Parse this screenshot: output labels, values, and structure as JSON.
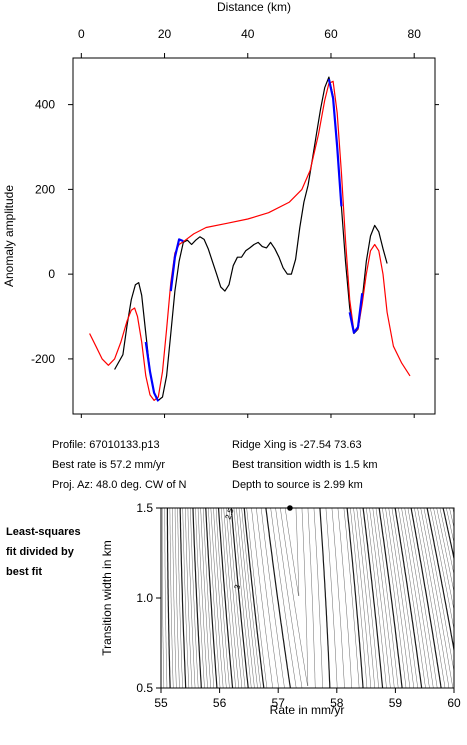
{
  "chart_data": [
    {
      "type": "line",
      "xlabel": "Distance (km)",
      "ylabel": "Anomaly amplitude",
      "xlim": [
        -2,
        85
      ],
      "ylim": [
        -330,
        510
      ],
      "x_ticks": [
        0,
        20,
        40,
        60,
        80
      ],
      "y_ticks": [
        -200,
        0,
        200,
        400
      ],
      "x_axis_position": "top",
      "grid": false,
      "series": [
        {
          "color": "#000000",
          "points": [
            [
              8,
              -225
            ],
            [
              10,
              -190
            ],
            [
              11,
              -120
            ],
            [
              12,
              -60
            ],
            [
              13,
              -25
            ],
            [
              13.8,
              -20
            ],
            [
              14.5,
              -50
            ],
            [
              15.5,
              -140
            ],
            [
              16.5,
              -230
            ],
            [
              17.5,
              -280
            ],
            [
              18.5,
              -298
            ],
            [
              19.5,
              -290
            ],
            [
              20.5,
              -240
            ],
            [
              21.5,
              -140
            ],
            [
              22.5,
              -40
            ],
            [
              23.5,
              30
            ],
            [
              24.5,
              75
            ],
            [
              25.5,
              80
            ],
            [
              26.5,
              70
            ],
            [
              27.5,
              80
            ],
            [
              28.5,
              88
            ],
            [
              29.5,
              82
            ],
            [
              30.5,
              60
            ],
            [
              31.5,
              30
            ],
            [
              32.5,
              0
            ],
            [
              33.5,
              -30
            ],
            [
              34.5,
              -40
            ],
            [
              35.5,
              -25
            ],
            [
              36.5,
              20
            ],
            [
              37.5,
              40
            ],
            [
              38.5,
              40
            ],
            [
              39.5,
              55
            ],
            [
              40.5,
              62
            ],
            [
              41.5,
              70
            ],
            [
              42.5,
              75
            ],
            [
              43.5,
              65
            ],
            [
              44.5,
              62
            ],
            [
              45.5,
              75
            ],
            [
              46.5,
              60
            ],
            [
              47.5,
              40
            ],
            [
              48.5,
              15
            ],
            [
              49.5,
              0
            ],
            [
              50.5,
              0
            ],
            [
              51.5,
              35
            ],
            [
              52.5,
              110
            ],
            [
              53.5,
              170
            ],
            [
              54.5,
              210
            ],
            [
              55.5,
              270
            ],
            [
              56.5,
              330
            ],
            [
              57.5,
              390
            ],
            [
              58.5,
              440
            ],
            [
              59.5,
              465
            ],
            [
              60.5,
              420
            ],
            [
              61.5,
              300
            ],
            [
              62.5,
              160
            ],
            [
              63.5,
              30
            ],
            [
              64.5,
              -80
            ],
            [
              65.5,
              -140
            ],
            [
              66.5,
              -130
            ],
            [
              67.5,
              -60
            ],
            [
              68.5,
              30
            ],
            [
              69.5,
              90
            ],
            [
              70.5,
              115
            ],
            [
              71.5,
              100
            ],
            [
              72.5,
              60
            ],
            [
              73.5,
              25
            ]
          ]
        },
        {
          "color": "#ff0000",
          "points": [
            [
              2,
              -140
            ],
            [
              3.5,
              -170
            ],
            [
              5,
              -200
            ],
            [
              6.5,
              -215
            ],
            [
              8,
              -200
            ],
            [
              9.5,
              -160
            ],
            [
              11,
              -110
            ],
            [
              12,
              -85
            ],
            [
              12.8,
              -80
            ],
            [
              13.5,
              -100
            ],
            [
              14.5,
              -160
            ],
            [
              15.5,
              -240
            ],
            [
              16.5,
              -285
            ],
            [
              17.5,
              -298
            ],
            [
              18.5,
              -290
            ],
            [
              19.5,
              -230
            ],
            [
              20.5,
              -130
            ],
            [
              21.5,
              -20
            ],
            [
              22.5,
              50
            ],
            [
              23.5,
              70
            ],
            [
              25,
              80
            ],
            [
              27,
              95
            ],
            [
              30,
              110
            ],
            [
              35,
              120
            ],
            [
              40,
              130
            ],
            [
              45,
              145
            ],
            [
              50,
              170
            ],
            [
              53,
              200
            ],
            [
              55,
              245
            ],
            [
              57,
              330
            ],
            [
              58.5,
              410
            ],
            [
              59.5,
              450
            ],
            [
              60.5,
              455
            ],
            [
              61.5,
              380
            ],
            [
              62.5,
              240
            ],
            [
              63.5,
              80
            ],
            [
              64.5,
              -60
            ],
            [
              65.5,
              -135
            ],
            [
              66.5,
              -130
            ],
            [
              67.5,
              -70
            ],
            [
              68.5,
              0
            ],
            [
              69.5,
              55
            ],
            [
              70.5,
              70
            ],
            [
              71.5,
              55
            ],
            [
              72.5,
              0
            ],
            [
              73.5,
              -90
            ],
            [
              75,
              -170
            ],
            [
              77,
              -210
            ],
            [
              79,
              -240
            ]
          ]
        },
        {
          "color": "#0000ff",
          "segments": [
            [
              [
                15.5,
                -160
              ],
              [
                16.5,
                -230
              ],
              [
                17.5,
                -280
              ],
              [
                18.5,
                -300
              ]
            ],
            [
              [
                21.5,
                -40
              ],
              [
                22.5,
                40
              ],
              [
                23.5,
                82
              ],
              [
                24.5,
                78
              ]
            ],
            [
              [
                59.5,
                460
              ],
              [
                60.5,
                415
              ],
              [
                61.5,
                300
              ],
              [
                62.5,
                160
              ]
            ],
            [
              [
                64.5,
                -90
              ],
              [
                65.5,
                -138
              ],
              [
                66.5,
                -125
              ],
              [
                67.5,
                -45
              ]
            ]
          ]
        }
      ]
    },
    {
      "type": "heatmap",
      "xlabel": "Rate in mm/yr",
      "ylabel": "Transition width in km",
      "xlim": [
        55,
        60
      ],
      "ylim": [
        0.5,
        1.5
      ],
      "x_ticks": [
        55,
        56,
        57,
        58,
        59,
        60
      ],
      "y_ticks": [
        0.5,
        1.0,
        1.5
      ],
      "best_fit": {
        "rate": 57.2,
        "width": 1.5
      },
      "contour_labels": [
        "2.5",
        "3"
      ]
    }
  ],
  "profile_info": {
    "profile": "Profile: 67010133.p13",
    "rate": "Best rate is 57.2 mm/yr",
    "azimuth": "Proj. Az: 48.0 deg. CW of N",
    "ridge": "Ridge Xing is -27.54 73.63",
    "width": "Best transition width is 1.5 km",
    "depth": "Depth to source is   2.99 km"
  },
  "side_note": [
    "Least-squares",
    "fit divided by",
    "best fit"
  ]
}
